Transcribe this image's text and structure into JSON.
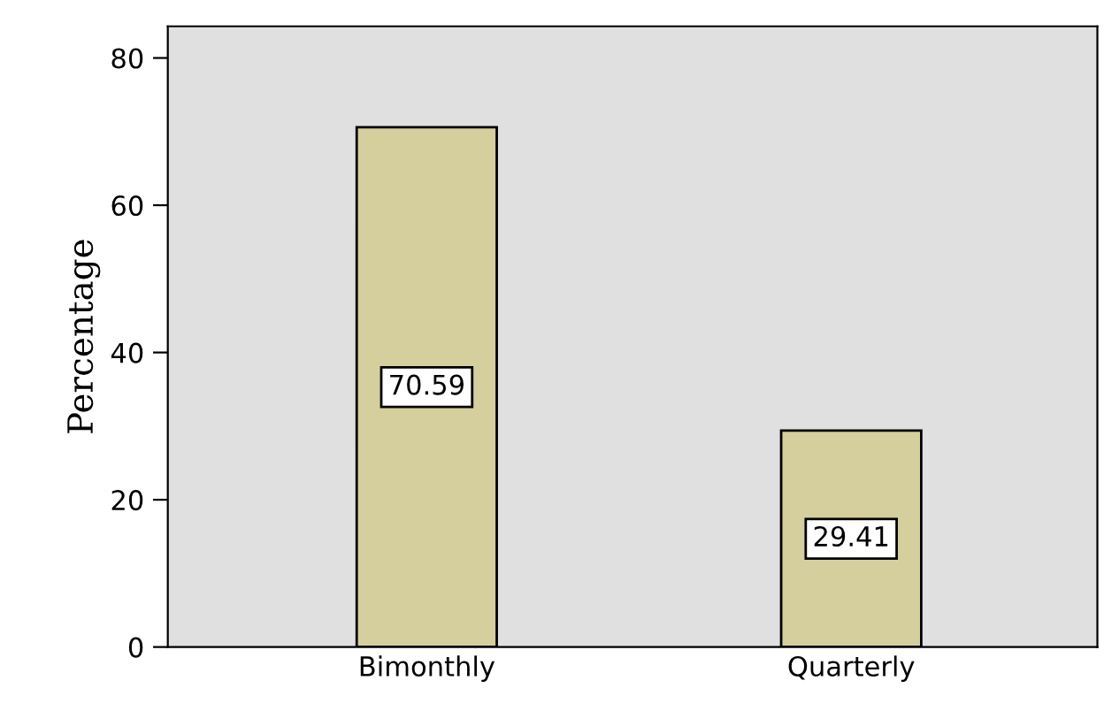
{
  "chart_data": {
    "type": "bar",
    "ylabel": "Percentage",
    "categories": [
      "Bimonthly",
      "Quarterly"
    ],
    "values": [
      70.59,
      29.41
    ],
    "color": "#d4cf9c",
    "ylim": [
      0,
      84.3
    ],
    "yticks": [
      0,
      20,
      40,
      60,
      80
    ],
    "grid": false,
    "data_labels": true
  }
}
